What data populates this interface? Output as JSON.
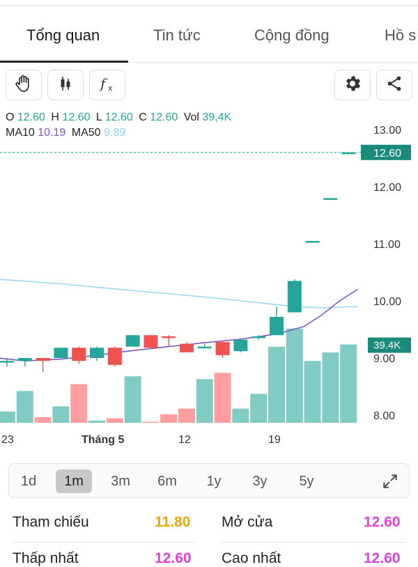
{
  "tabs": [
    {
      "label": "Tổng quan",
      "active": true
    },
    {
      "label": "Tin tức",
      "active": false
    },
    {
      "label": "Cộng đồng",
      "active": false
    },
    {
      "label": "Hồ s",
      "active": false
    }
  ],
  "toolbar": {
    "left": [
      "hand-icon",
      "candlestick-icon",
      "function-icon"
    ],
    "right": [
      "gear-icon",
      "share-icon"
    ]
  },
  "ohlc": {
    "o_label": "O",
    "o": "12.60",
    "h_label": "H",
    "h": "12.60",
    "l_label": "L",
    "l": "12.60",
    "c_label": "C",
    "c": "12.60",
    "vol_label": "Vol",
    "vol": "39,4K",
    "ma10_label": "MA10",
    "ma10": "10.19",
    "ma50_label": "MA50",
    "ma50": "9.89"
  },
  "colors": {
    "up": "#26a69a",
    "down": "#ef5350",
    "vol_up": "#80cbc4",
    "vol_down": "#ff9e9e",
    "ma10": "#7e57c2",
    "ma50": "#9ed8f2",
    "last_price_tag": "#1a8a7a"
  },
  "chart_data": {
    "type": "candlestick",
    "y_ticks": [
      "13.00",
      "12.00",
      "11.00",
      "10.00",
      "9.00",
      "8.00"
    ],
    "y_tick_values": [
      13,
      12,
      11,
      10,
      9,
      8
    ],
    "x_labels": [
      {
        "label": "23",
        "index": 0
      },
      {
        "label": "Tháng 5",
        "index": 5
      },
      {
        "label": "12",
        "index": 10
      },
      {
        "label": "19",
        "index": 15
      }
    ],
    "last_price": "12.60",
    "last_volume": "39.4K",
    "candles": [
      {
        "o": 8.95,
        "h": 9.0,
        "l": 8.85,
        "c": 8.95,
        "v": 2
      },
      {
        "o": 8.95,
        "h": 9.0,
        "l": 8.85,
        "c": 9.0,
        "v": 5.6
      },
      {
        "o": 9.0,
        "h": 9.0,
        "l": 8.75,
        "c": 8.95,
        "v": 1
      },
      {
        "o": 9.0,
        "h": 9.18,
        "l": 9.0,
        "c": 9.18,
        "v": 2.9
      },
      {
        "o": 9.18,
        "h": 9.2,
        "l": 8.9,
        "c": 8.95,
        "v": 6.8
      },
      {
        "o": 9.0,
        "h": 9.2,
        "l": 8.95,
        "c": 9.18,
        "v": 0.4
      },
      {
        "o": 9.18,
        "h": 9.2,
        "l": 8.85,
        "c": 8.88,
        "v": 0.8
      },
      {
        "o": 9.2,
        "h": 9.4,
        "l": 9.2,
        "c": 9.4,
        "v": 8.2
      },
      {
        "o": 9.4,
        "h": 9.4,
        "l": 9.18,
        "c": 9.18,
        "v": 0.2
      },
      {
        "o": 9.38,
        "h": 9.4,
        "l": 9.2,
        "c": 9.35,
        "v": 1.5
      },
      {
        "o": 9.25,
        "h": 9.28,
        "l": 9.1,
        "c": 9.1,
        "v": 2.5
      },
      {
        "o": 9.2,
        "h": 9.25,
        "l": 9.2,
        "c": 9.2,
        "v": 7.7
      },
      {
        "o": 9.28,
        "h": 9.3,
        "l": 9.0,
        "c": 9.05,
        "v": 8.8
      },
      {
        "o": 9.12,
        "h": 9.3,
        "l": 9.1,
        "c": 9.32,
        "v": 2.5
      },
      {
        "o": 9.38,
        "h": 9.4,
        "l": 9.32,
        "c": 9.38,
        "v": 5.1
      },
      {
        "o": 9.4,
        "h": 9.9,
        "l": 9.4,
        "c": 9.72,
        "v": 13.4
      },
      {
        "o": 9.8,
        "h": 10.38,
        "l": 9.8,
        "c": 10.35,
        "v": 16.6
      },
      {
        "o": 11.05,
        "h": 11.05,
        "l": 11.05,
        "c": 11.05,
        "v": 10.9
      },
      {
        "o": 11.8,
        "h": 11.8,
        "l": 11.8,
        "c": 11.8,
        "v": 12.4
      },
      {
        "o": 12.6,
        "h": 12.6,
        "l": 12.6,
        "c": 12.6,
        "v": 13.8
      }
    ],
    "ma10_points": [
      [
        -0.5,
        9.0
      ],
      [
        1,
        8.95
      ],
      [
        3,
        8.98
      ],
      [
        5,
        9.05
      ],
      [
        7,
        9.13
      ],
      [
        9,
        9.2
      ],
      [
        11,
        9.27
      ],
      [
        13,
        9.33
      ],
      [
        15,
        9.42
      ],
      [
        16.5,
        9.55
      ],
      [
        17.5,
        9.75
      ],
      [
        18.5,
        10.0
      ],
      [
        19.5,
        10.2
      ]
    ],
    "ma50_points": [
      [
        -0.5,
        10.38
      ],
      [
        3,
        10.3
      ],
      [
        7,
        10.18
      ],
      [
        11,
        10.07
      ],
      [
        14,
        9.97
      ],
      [
        16,
        9.9
      ],
      [
        17.5,
        9.88
      ],
      [
        19.5,
        9.9
      ]
    ]
  },
  "periods": [
    {
      "label": "1d",
      "active": false
    },
    {
      "label": "1m",
      "active": true
    },
    {
      "label": "3m",
      "active": false
    },
    {
      "label": "6m",
      "active": false
    },
    {
      "label": "1y",
      "active": false
    },
    {
      "label": "3y",
      "active": false
    },
    {
      "label": "5y",
      "active": false
    }
  ],
  "stats": {
    "ref_label": "Tham chiếu",
    "ref_value": "11.80",
    "open_label": "Mở cửa",
    "open_value": "12.60",
    "low_label": "Thấp nhất",
    "low_value": "12.60",
    "high_label": "Cao nhất",
    "high_value": "12.60"
  }
}
